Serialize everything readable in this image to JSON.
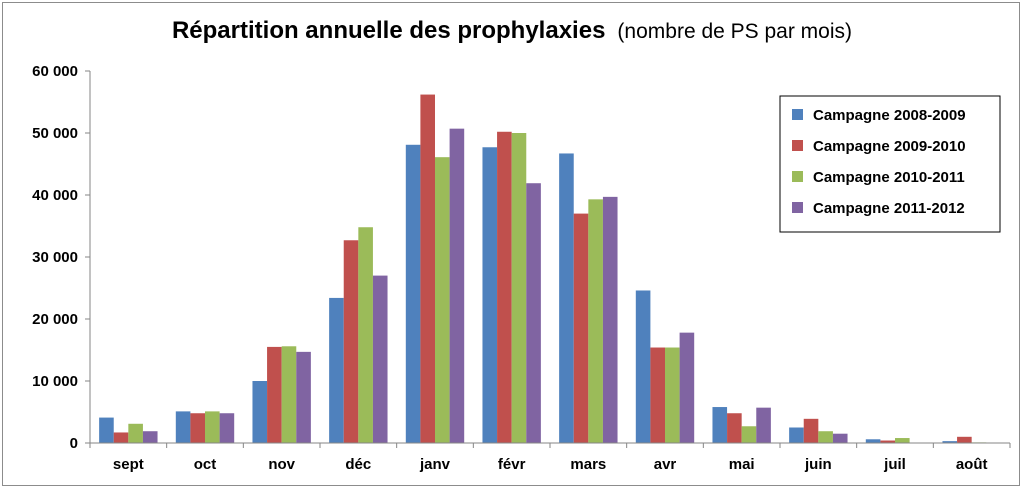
{
  "chart_data": {
    "type": "bar",
    "title": "Répartition annuelle des prophylaxies",
    "subtitle": "(nombre de PS par mois)",
    "xlabel": "",
    "ylabel": "",
    "ylim": [
      0,
      60000
    ],
    "yticks": [
      "0",
      "10 000",
      "20 000",
      "30 000",
      "40 000",
      "50 000",
      "60 000"
    ],
    "grid": false,
    "legend_position": "right",
    "categories": [
      "sept",
      "oct",
      "nov",
      "déc",
      "janv",
      "févr",
      "mars",
      "avr",
      "mai",
      "juin",
      "juil",
      "août"
    ],
    "series": [
      {
        "name": "Campagne 2008-2009",
        "color": "#4f81bd",
        "values": [
          4100,
          5100,
          10000,
          23400,
          48100,
          47700,
          46700,
          24600,
          5800,
          2500,
          600,
          300
        ]
      },
      {
        "name": "Campagne 2009-2010",
        "color": "#c0504d",
        "values": [
          1700,
          4800,
          15500,
          32700,
          56200,
          50200,
          37000,
          15400,
          4800,
          3900,
          400,
          1000
        ]
      },
      {
        "name": "Campagne 2010-2011",
        "color": "#9bbb59",
        "values": [
          3100,
          5100,
          15600,
          34800,
          46100,
          50000,
          39300,
          15400,
          2700,
          1900,
          800,
          100
        ]
      },
      {
        "name": "Campagne 2011-2012",
        "color": "#8064a2",
        "values": [
          1900,
          4800,
          14700,
          27000,
          50700,
          41900,
          39700,
          17800,
          5700,
          1500,
          0,
          0
        ]
      }
    ]
  }
}
